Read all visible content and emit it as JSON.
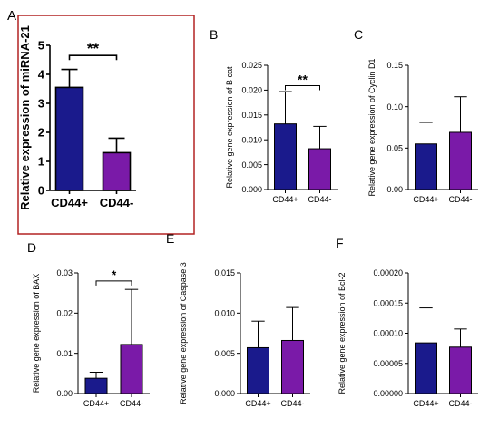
{
  "colors": {
    "cd44_pos": "#1a1a8c",
    "cd44_neg": "#7a1aa8",
    "highlight_box": "#b22222"
  },
  "chart_data": [
    {
      "panel": "A",
      "type": "bar",
      "ylabel": "Relative expression of miRNA-21",
      "categories": [
        "CD44+",
        "CD44-"
      ],
      "values": [
        3.55,
        1.3
      ],
      "errors": [
        0.62,
        0.5
      ],
      "ylim": [
        0,
        5
      ],
      "yticks": [
        "0",
        "1",
        "2",
        "3",
        "4",
        "5"
      ],
      "significance": "**",
      "highlighted": true
    },
    {
      "panel": "B",
      "type": "bar",
      "ylabel": "Relative gene expression of B cat",
      "categories": [
        "CD44+",
        "CD44-"
      ],
      "values": [
        0.0132,
        0.0082
      ],
      "errors": [
        0.0065,
        0.0045
      ],
      "ylim": [
        0,
        0.025
      ],
      "yticks": [
        "0.000",
        "0.005",
        "0.010",
        "0.015",
        "0.020",
        "0.025"
      ],
      "significance": "**"
    },
    {
      "panel": "C",
      "type": "bar",
      "ylabel": "Relative gene expression of Cyclin D1",
      "categories": [
        "CD44+",
        "CD44-"
      ],
      "values": [
        0.055,
        0.069
      ],
      "errors": [
        0.026,
        0.043
      ],
      "ylim": [
        0,
        0.15
      ],
      "yticks": [
        "0.00",
        "0.05",
        "0.10",
        "0.15"
      ],
      "significance": ""
    },
    {
      "panel": "D",
      "type": "bar",
      "ylabel": "Relative gene expression of BAX",
      "categories": [
        "CD44+",
        "CD44-"
      ],
      "values": [
        0.0038,
        0.0122
      ],
      "errors": [
        0.0015,
        0.0137
      ],
      "ylim": [
        0,
        0.03
      ],
      "yticks": [
        "0.00",
        "0.01",
        "0.02",
        "0.03"
      ],
      "significance": "*"
    },
    {
      "panel": "E",
      "type": "bar",
      "ylabel": "Relative gene expression of Caspase 3",
      "categories": [
        "CD44+",
        "CD44-"
      ],
      "values": [
        0.0057,
        0.0066
      ],
      "errors": [
        0.0033,
        0.0041
      ],
      "ylim": [
        0,
        0.015
      ],
      "yticks": [
        "0.000",
        "0.005",
        "0.010",
        "0.015"
      ],
      "significance": ""
    },
    {
      "panel": "F",
      "type": "bar",
      "ylabel": "Relative gene expression of Bcl-2",
      "categories": [
        "CD44+",
        "CD44-"
      ],
      "values": [
        8.4e-05,
        7.7e-05
      ],
      "errors": [
        5.8e-05,
        3e-05
      ],
      "ylim": [
        0,
        0.0002
      ],
      "yticks": [
        "0.00000",
        "0.00005",
        "0.00010",
        "0.00015",
        "0.00020"
      ],
      "significance": ""
    }
  ]
}
